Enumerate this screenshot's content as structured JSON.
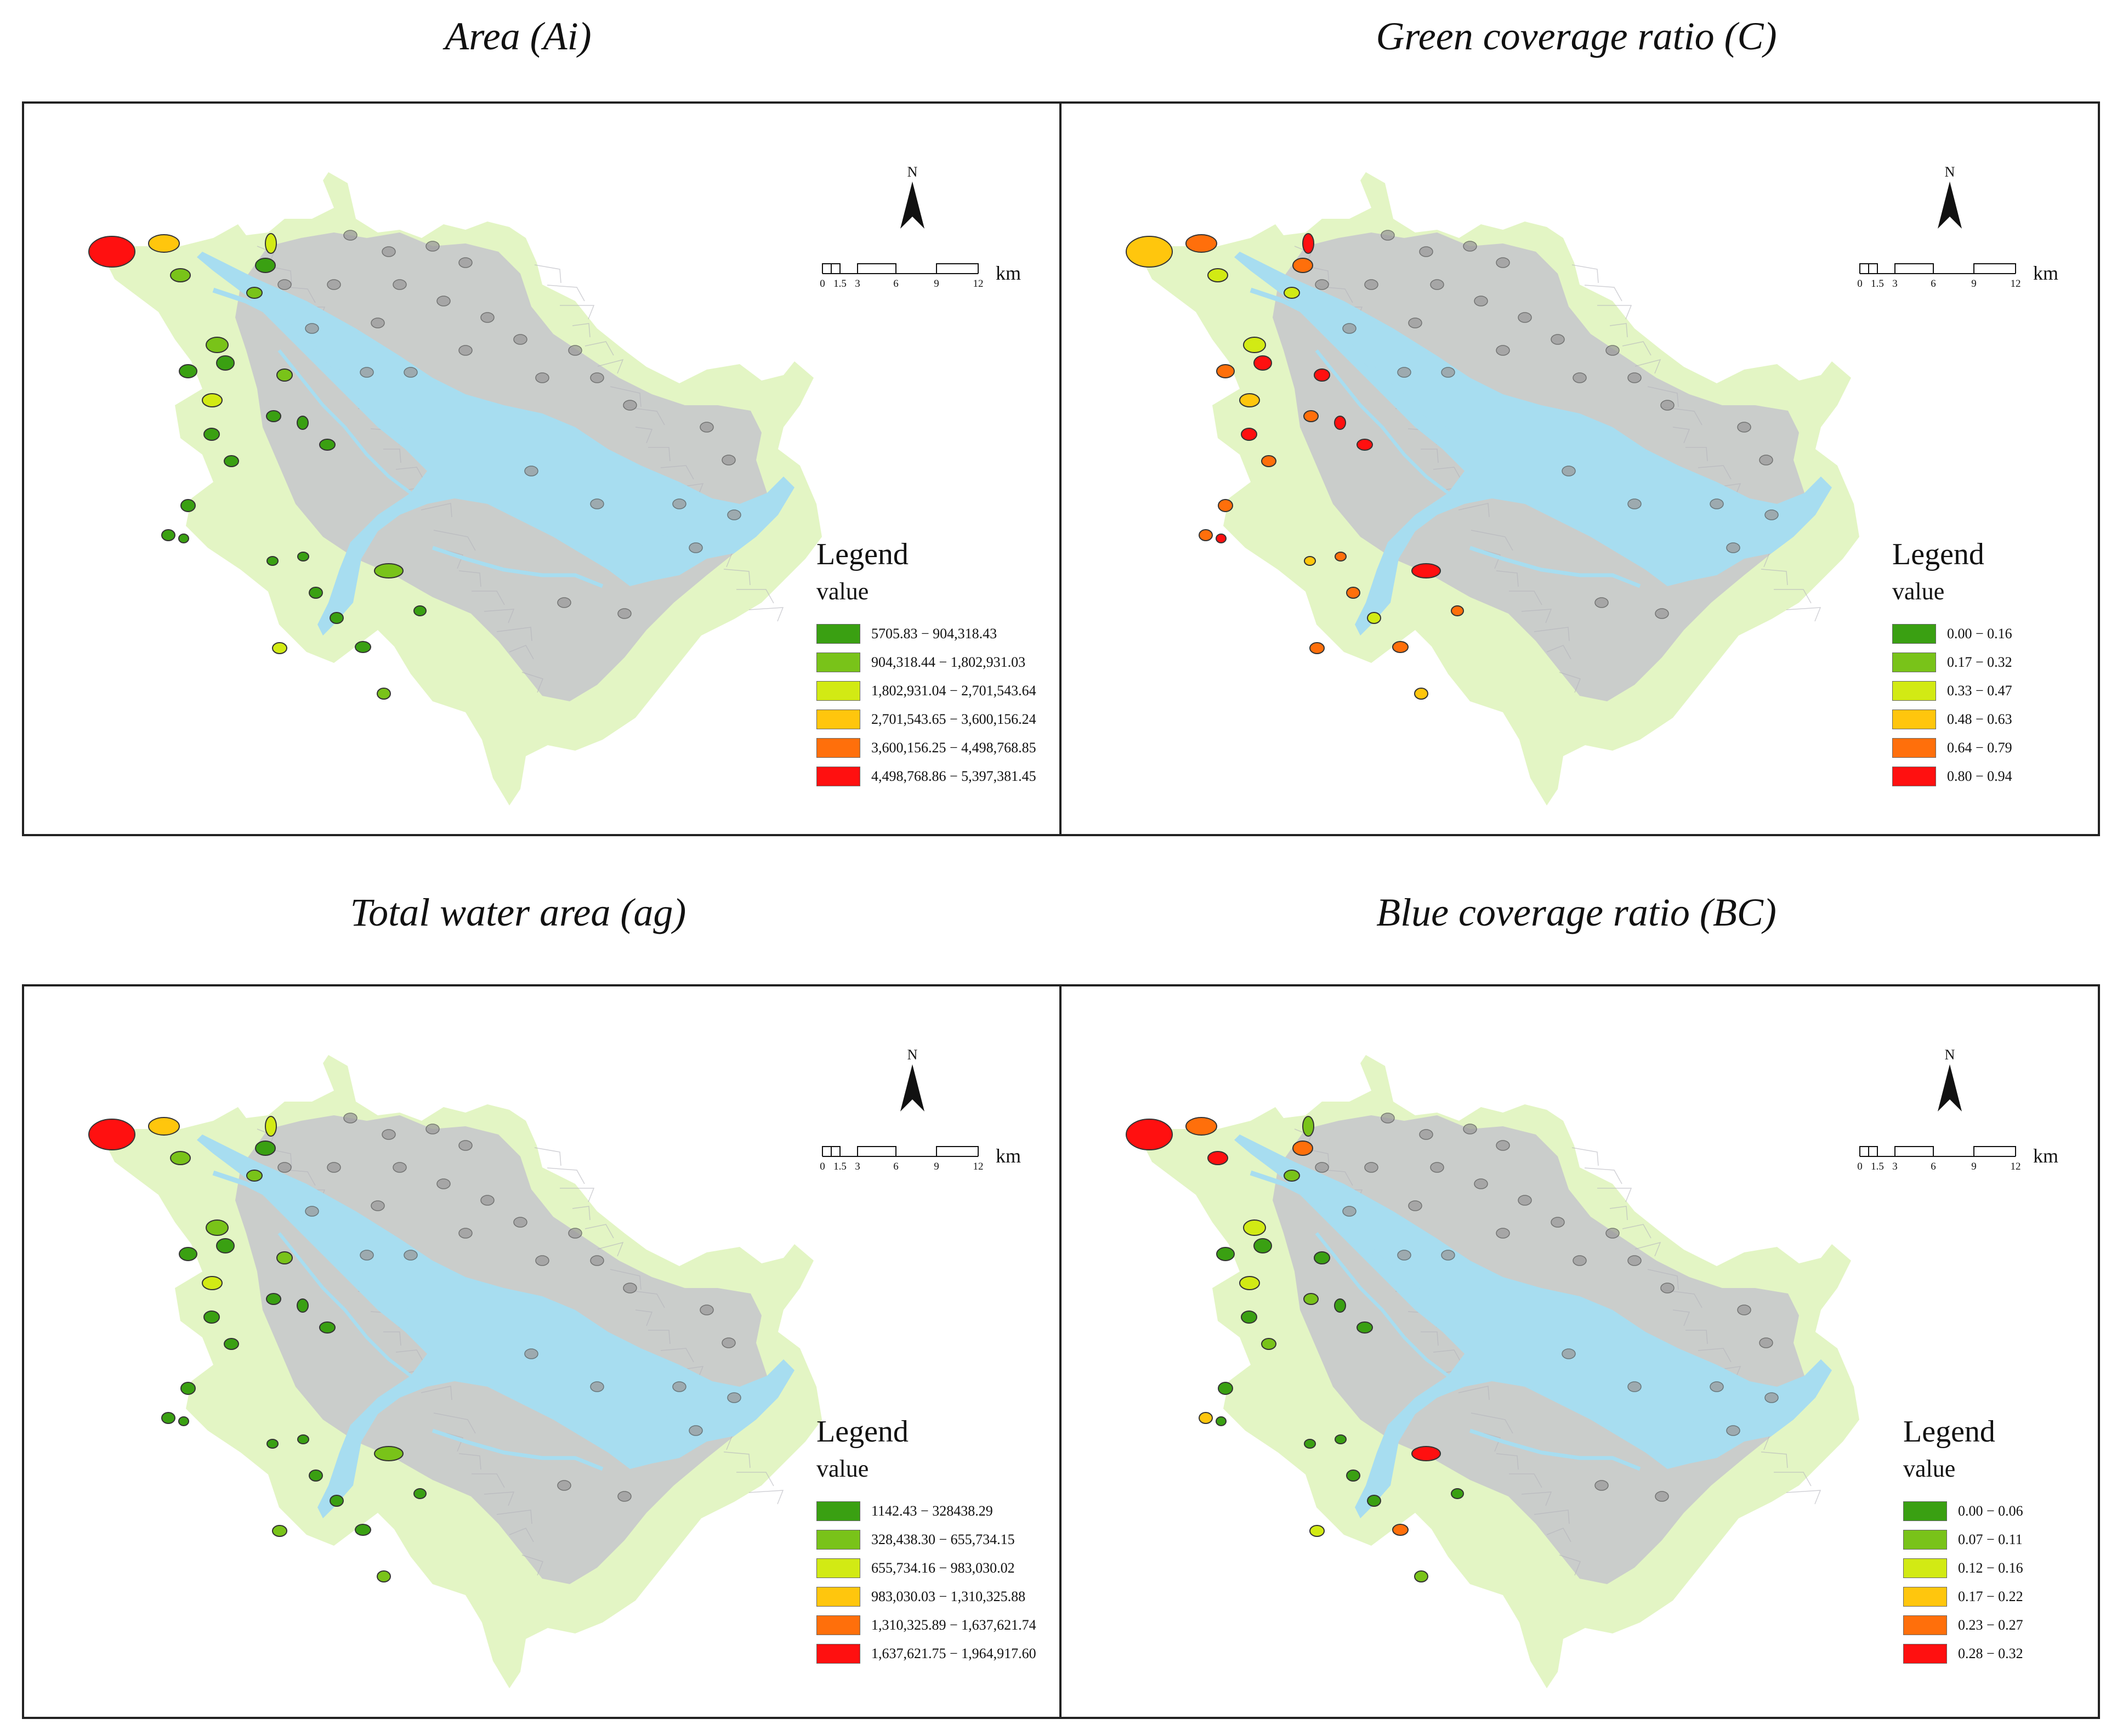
{
  "colors": {
    "land": "#e3f5c4",
    "urban": "#c6c6cc",
    "water": "#a7ddf0",
    "class_1": "#3aa012",
    "class_2": "#79c319",
    "class_3": "#d2ea14",
    "class_4": "#ffc60d",
    "class_5": "#ff6f0b",
    "class_6": "#ff1010"
  },
  "scale_bar": {
    "ticks": [
      "0",
      "1.5",
      "3",
      "6",
      "9",
      "12"
    ],
    "unit": "km"
  },
  "north_label": "N",
  "panels": [
    {
      "title": "Area (Ai)",
      "legend_title": "Legend",
      "legend_subtitle": "value",
      "classes": [
        "5705.83 − 904,318.43",
        "904,318.44 − 1,802,931.03",
        "1,802,931.04 − 2,701,543.64",
        "2,701,543.65 − 3,600,156.24",
        "3,600,156.25 − 4,498,768.85",
        "4,498,768.86 − 5,397,381.45"
      ],
      "park_classes": [
        6,
        4,
        2,
        3,
        1,
        2,
        1,
        1,
        3,
        2,
        1,
        1,
        2,
        1,
        1,
        1,
        1,
        1,
        1,
        1,
        1,
        2,
        1,
        3,
        1,
        1,
        2,
        1
      ]
    },
    {
      "title": "Green coverage ratio (C)",
      "legend_title": "Legend",
      "legend_subtitle": "value",
      "classes": [
        "0.00 − 0.16",
        "0.17 − 0.32",
        "0.33 − 0.47",
        "0.48 − 0.63",
        "0.64 − 0.79",
        "0.80 − 0.94"
      ],
      "park_classes": [
        4,
        5,
        3,
        6,
        5,
        3,
        6,
        5,
        4,
        3,
        6,
        5,
        6,
        6,
        5,
        6,
        5,
        5,
        6,
        4,
        5,
        6,
        5,
        5,
        3,
        5,
        4,
        5
      ]
    },
    {
      "title": "Total water area (ag)",
      "legend_title": "Legend",
      "legend_subtitle": "value",
      "classes": [
        "1142.43 − 328438.29",
        "328,438.30 − 655,734.15",
        "655,734.16 − 983,030.02",
        "983,030.03 − 1,310,325.88",
        "1,310,325.89 − 1,637,621.74",
        "1,637,621.75 − 1,964,917.60"
      ],
      "park_classes": [
        6,
        4,
        2,
        3,
        1,
        2,
        1,
        1,
        3,
        2,
        1,
        1,
        2,
        1,
        1,
        1,
        1,
        1,
        1,
        1,
        1,
        2,
        1,
        2,
        1,
        1,
        2,
        1
      ]
    },
    {
      "title": "Blue coverage ratio (BC)",
      "legend_title": "Legend",
      "legend_subtitle": "value",
      "classes": [
        "0.00 − 0.06",
        "0.07 − 0.11",
        "0.12 − 0.16",
        "0.17 − 0.22",
        "0.23 − 0.27",
        "0.28 − 0.32"
      ],
      "park_classes": [
        6,
        5,
        2,
        2,
        5,
        3,
        1,
        1,
        3,
        6,
        1,
        2,
        1,
        1,
        2,
        1,
        1,
        4,
        1,
        1,
        1,
        6,
        1,
        3,
        1,
        5,
        2,
        1
      ]
    }
  ]
}
